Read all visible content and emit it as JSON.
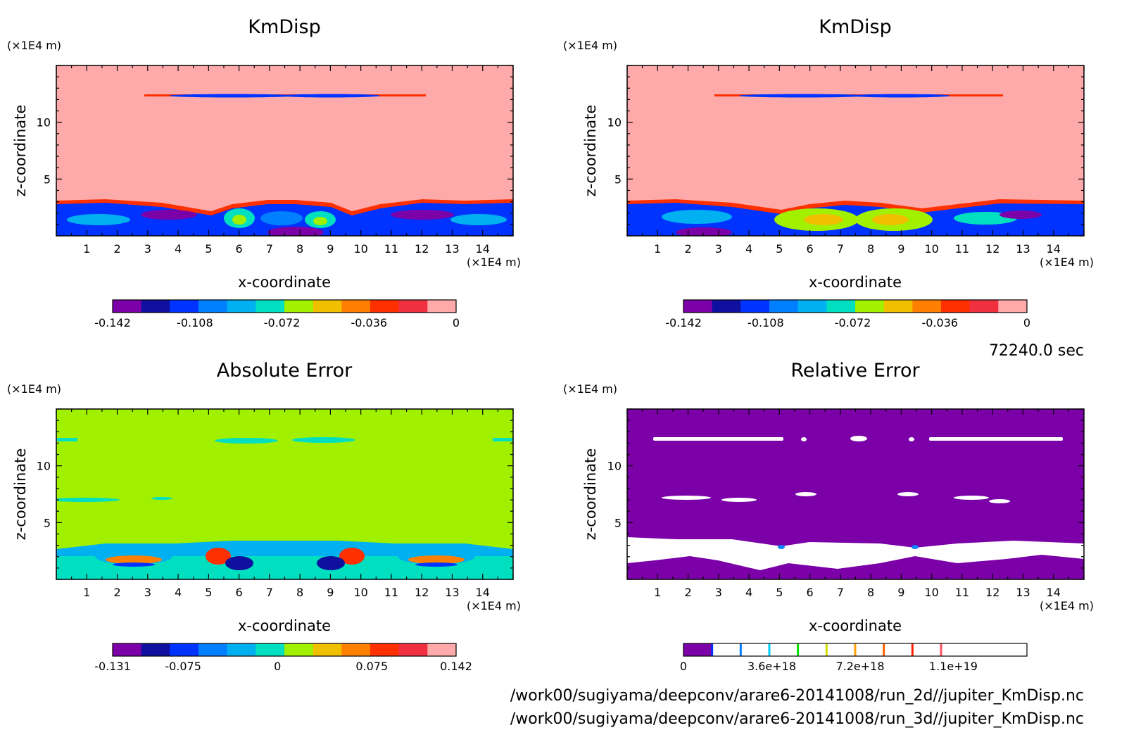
{
  "chart_data": [
    {
      "type": "heatmap",
      "title": "KmDisp",
      "xlabel": "x-coordinate",
      "ylabel": "z-coordinate",
      "x_unit": "(×1E4 m)",
      "y_unit": "(×1E4 m)",
      "xlim": [
        0,
        15
      ],
      "ylim": [
        0,
        15
      ],
      "x_ticks": [
        1,
        2,
        3,
        4,
        5,
        6,
        7,
        8,
        9,
        10,
        11,
        12,
        13,
        14
      ],
      "y_ticks": [
        5,
        10
      ],
      "colorbar": {
        "min": -0.142,
        "max": 0,
        "tick_labels": [
          "-0.142",
          "-0.108",
          "-0.072",
          "-0.036",
          "0"
        ],
        "tick_values": [
          -0.142,
          -0.108,
          -0.072,
          -0.036,
          0
        ],
        "colors": [
          "#7c00a8",
          "#1010a0",
          "#0033ff",
          "#0080ff",
          "#00b0f0",
          "#00e0c0",
          "#a0f000",
          "#f0c000",
          "#ff8000",
          "#ff3000",
          "#f03040",
          "#ffaaaa"
        ]
      },
      "background": "#ffaaaa"
    },
    {
      "type": "heatmap",
      "title": "KmDisp",
      "xlabel": "x-coordinate",
      "ylabel": "z-coordinate",
      "x_unit": "(×1E4 m)",
      "y_unit": "(×1E4 m)",
      "xlim": [
        0,
        15
      ],
      "ylim": [
        0,
        15
      ],
      "x_ticks": [
        1,
        2,
        3,
        4,
        5,
        6,
        7,
        8,
        9,
        10,
        11,
        12,
        13,
        14
      ],
      "y_ticks": [
        5,
        10
      ],
      "colorbar": {
        "min": -0.142,
        "max": 0,
        "tick_labels": [
          "-0.142",
          "-0.108",
          "-0.072",
          "-0.036",
          "0"
        ],
        "tick_values": [
          -0.142,
          -0.108,
          -0.072,
          -0.036,
          0
        ],
        "colors": [
          "#7c00a8",
          "#1010a0",
          "#0033ff",
          "#0080ff",
          "#00b0f0",
          "#00e0c0",
          "#a0f000",
          "#f0c000",
          "#ff8000",
          "#ff3000",
          "#f03040",
          "#ffaaaa"
        ]
      },
      "background": "#ffaaaa"
    },
    {
      "type": "heatmap",
      "title": "Absolute Error",
      "xlabel": "x-coordinate",
      "ylabel": "z-coordinate",
      "x_unit": "(×1E4 m)",
      "y_unit": "(×1E4 m)",
      "xlim": [
        0,
        15
      ],
      "ylim": [
        0,
        15
      ],
      "x_ticks": [
        1,
        2,
        3,
        4,
        5,
        6,
        7,
        8,
        9,
        10,
        11,
        12,
        13,
        14
      ],
      "y_ticks": [
        5,
        10
      ],
      "colorbar": {
        "min": -0.131,
        "max": 0.142,
        "tick_labels": [
          "-0.131",
          "-0.075",
          "0",
          "0.075",
          "0.142"
        ],
        "tick_values": [
          -0.131,
          -0.075,
          0,
          0.075,
          0.142
        ],
        "colors": [
          "#7c00a8",
          "#1010a0",
          "#0033ff",
          "#0080ff",
          "#00b0f0",
          "#00e0c0",
          "#a0f000",
          "#f0c000",
          "#ff8000",
          "#ff3000",
          "#f03040",
          "#ffaaaa"
        ]
      },
      "background": "#a0f000"
    },
    {
      "type": "heatmap",
      "title": "Relative Error",
      "xlabel": "x-coordinate",
      "ylabel": "z-coordinate",
      "x_unit": "(×1E4 m)",
      "y_unit": "(×1E4 m)",
      "xlim": [
        0,
        15
      ],
      "ylim": [
        0,
        15
      ],
      "x_ticks": [
        1,
        2,
        3,
        4,
        5,
        6,
        7,
        8,
        9,
        10,
        11,
        12,
        13,
        14
      ],
      "y_ticks": [
        5,
        10
      ],
      "colorbar": {
        "min": 0,
        "max": 1.4e+19,
        "tick_labels": [
          "0",
          "3.6e+18",
          "7.2e+18",
          "1.1e+19"
        ],
        "tick_values": [
          0,
          3.6e+18,
          7.2e+18,
          1.1e+19
        ],
        "colors": [
          "#7c00a8",
          "#ffffff",
          "#ffffff",
          "#ffffff",
          "#ffffff",
          "#ffffff",
          "#ffffff",
          "#ffffff",
          "#ffffff",
          "#ffffff",
          "#ffffff",
          "#ffffff"
        ],
        "line_colors": [
          "#0033ff",
          "#0080ff",
          "#00d0ff",
          "#00e000",
          "#d0e000",
          "#ffa000",
          "#ff6000",
          "#ff2000",
          "#ff5060"
        ]
      },
      "background": "#7c00a8"
    }
  ],
  "info": {
    "time": "72240.0 sec",
    "file1": "/work00/sugiyama/deepconv/arare6-20141008/run_2d//jupiter_KmDisp.nc",
    "file2": "/work00/sugiyama/deepconv/arare6-20141008/run_3d//jupiter_KmDisp.nc"
  }
}
